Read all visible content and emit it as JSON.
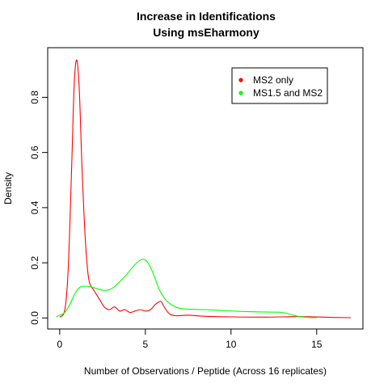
{
  "chart_data": {
    "type": "line",
    "title_line1": "Increase in Identifications",
    "title_line2": "Using msEharmony",
    "xlabel": "Number of Observations / Peptide (Across 16 replicates)",
    "ylabel": "Density",
    "xlim": [
      -0.7,
      17.7
    ],
    "ylim": [
      -0.04,
      0.98
    ],
    "x_ticks": [
      0,
      5,
      10,
      15
    ],
    "y_ticks": [
      0.0,
      0.2,
      0.4,
      0.6,
      0.8
    ],
    "x_tick_labels": [
      "0",
      "5",
      "10",
      "15"
    ],
    "y_tick_labels": [
      "0.0",
      "0.2",
      "0.4",
      "0.6",
      "0.8"
    ],
    "grid": false,
    "legend_position": "top-right",
    "series": [
      {
        "name": "MS2 only",
        "color": "#ff0000",
        "x": [
          0.0,
          0.3,
          0.5,
          0.7,
          0.85,
          1.0,
          1.15,
          1.3,
          1.5,
          1.7,
          2.0,
          2.3,
          2.6,
          2.9,
          3.2,
          3.5,
          3.8,
          4.1,
          4.4,
          4.7,
          5.0,
          5.3,
          5.6,
          5.9,
          6.1,
          6.4,
          6.8,
          7.5,
          8.5,
          10.0,
          12.0,
          14.0,
          16.0,
          17.0
        ],
        "y": [
          0.003,
          0.03,
          0.18,
          0.55,
          0.85,
          0.935,
          0.82,
          0.55,
          0.28,
          0.14,
          0.1,
          0.07,
          0.04,
          0.03,
          0.04,
          0.025,
          0.03,
          0.02,
          0.025,
          0.03,
          0.025,
          0.03,
          0.05,
          0.06,
          0.04,
          0.015,
          0.008,
          0.01,
          0.006,
          0.004,
          0.003,
          0.005,
          0.002,
          0.001
        ]
      },
      {
        "name": "MS1.5 and MS2",
        "color": "#00ff00",
        "x": [
          -0.2,
          0.0,
          0.3,
          0.6,
          0.9,
          1.2,
          1.5,
          1.8,
          2.2,
          2.6,
          3.0,
          3.4,
          3.8,
          4.2,
          4.5,
          4.8,
          5.0,
          5.2,
          5.5,
          5.8,
          6.2,
          6.6,
          7.0,
          7.5,
          8.5,
          9.5,
          10.5,
          11.5,
          12.5,
          13.0,
          13.5,
          14.0,
          14.5,
          15.0
        ],
        "y": [
          0.005,
          0.01,
          0.02,
          0.05,
          0.09,
          0.112,
          0.115,
          0.113,
          0.106,
          0.1,
          0.105,
          0.125,
          0.15,
          0.18,
          0.2,
          0.212,
          0.21,
          0.195,
          0.155,
          0.105,
          0.065,
          0.045,
          0.035,
          0.032,
          0.03,
          0.027,
          0.024,
          0.022,
          0.021,
          0.02,
          0.012,
          0.005,
          0.002,
          0.001
        ]
      }
    ]
  }
}
